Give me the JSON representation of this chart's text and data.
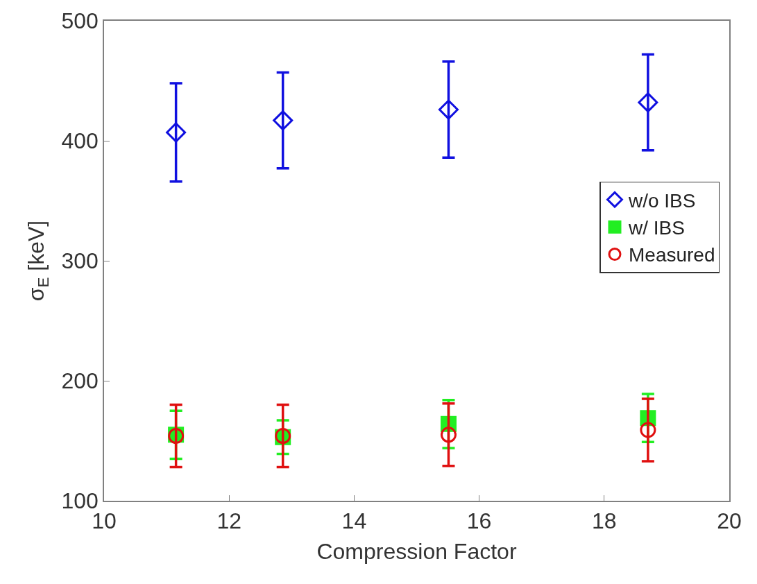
{
  "chart_data": {
    "type": "scatter",
    "xlabel": "Compression Factor",
    "ylabel": "σ$_{E}$ [keV]",
    "x": [
      11.15,
      12.86,
      15.51,
      18.7
    ],
    "series": [
      {
        "name": "w/o IBS",
        "color": "#1010e0",
        "marker": "diamond",
        "values": [
          407,
          417,
          426,
          432
        ],
        "errors": [
          41,
          40,
          40,
          40
        ]
      },
      {
        "name": "w/ IBS",
        "color": "#22ee22",
        "marker": "square",
        "values": [
          155,
          153,
          164,
          169
        ],
        "errors": [
          20,
          14,
          20,
          20
        ]
      },
      {
        "name": "Measured",
        "color": "#e01010",
        "marker": "circle",
        "values": [
          154,
          154,
          155,
          159
        ],
        "errors": [
          26,
          26,
          26,
          26
        ]
      }
    ],
    "xlim": [
      10,
      20
    ],
    "xticks": [
      10,
      12,
      14,
      16,
      18,
      20
    ],
    "ylim": [
      100,
      500
    ],
    "yticks": [
      100,
      200,
      300,
      400,
      500
    ],
    "grid": false,
    "legend": "right"
  }
}
